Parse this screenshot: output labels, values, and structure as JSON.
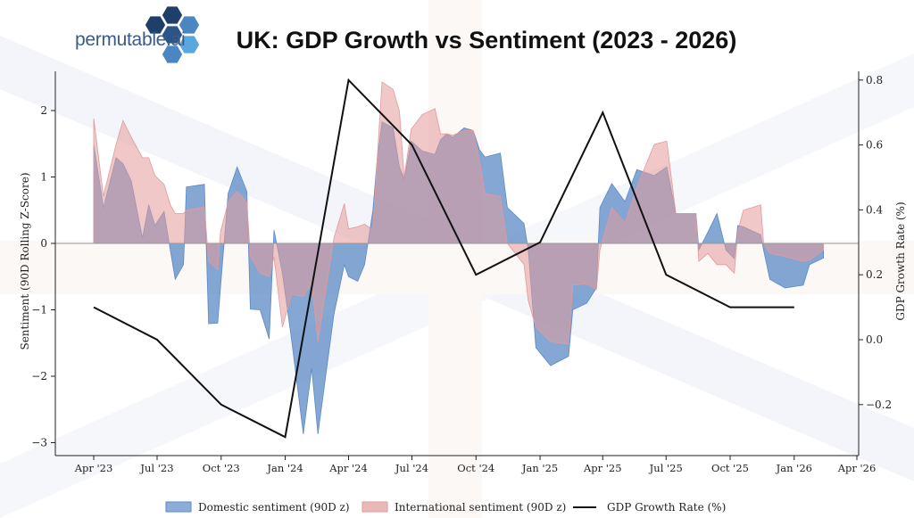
{
  "logo": {
    "text": "permutable.ai",
    "colors": [
      "#1f3f6b",
      "#2b5589",
      "#4a86c2",
      "#5aa7e0"
    ]
  },
  "chart_data": {
    "type": "area",
    "title": "UK: GDP Growth vs Sentiment (2023 - 2026)",
    "ylabel_left": "Sentiment (90D Rolling Z-Score)",
    "ylabel_right": "GDP Growth Rate (%)",
    "ylim_left": [
      -3.2,
      2.6
    ],
    "ylim_right": [
      -0.33,
      0.83
    ],
    "xlim": [
      "2023-03-02",
      "2026-04-01"
    ],
    "yticks_left": [
      2,
      1,
      0,
      -1,
      -2,
      -3
    ],
    "yticks_left_labels": [
      "2",
      "1",
      "0",
      "−1",
      "−2",
      "−3"
    ],
    "yticks_right": [
      0.8,
      0.6,
      0.4,
      0.2,
      0.0,
      -0.2
    ],
    "yticks_right_labels": [
      "0.8",
      "0.6",
      "0.4",
      "0.2",
      "0.0",
      "−0.2"
    ],
    "xticks": [
      "2023-04-01",
      "2023-07-01",
      "2023-10-01",
      "2024-01-01",
      "2024-04-01",
      "2024-07-01",
      "2024-10-01",
      "2025-01-01",
      "2025-04-01",
      "2025-07-01",
      "2025-10-01",
      "2026-01-01",
      "2026-04-01"
    ],
    "xtick_labels": [
      "Apr '23",
      "Jul '23",
      "Oct '23",
      "Jan '24",
      "Apr '24",
      "Jul '24",
      "Oct '24",
      "Jan '25",
      "Apr '25",
      "Jul '25",
      "Oct '25",
      "Jan '26",
      "Apr '26"
    ],
    "grid": false,
    "legend_position": "bottom-center",
    "series": [
      {
        "name": "Domestic sentiment (90D z)",
        "kind": "area",
        "axis": "left",
        "color": "#5b8ac6"
      },
      {
        "name": "International sentiment (90D z)",
        "kind": "area",
        "axis": "left",
        "color": "#e39a9a"
      },
      {
        "name": "GDP Growth Rate (%)",
        "kind": "line",
        "axis": "right",
        "color": "#111111"
      }
    ],
    "sentiment_dates": [
      "2023-04-01",
      "2023-04-15",
      "2023-05-03",
      "2023-05-13",
      "2023-05-25",
      "2023-06-10",
      "2023-06-19",
      "2023-06-28",
      "2023-07-11",
      "2023-07-20",
      "2023-07-27",
      "2023-08-08",
      "2023-08-12",
      "2023-09-07",
      "2023-09-13",
      "2023-09-26",
      "2023-09-30",
      "2023-10-11",
      "2023-10-24",
      "2023-11-07",
      "2023-11-12",
      "2023-11-26",
      "2023-12-09",
      "2023-12-16",
      "2023-12-28",
      "2024-01-10",
      "2024-01-27",
      "2024-02-08",
      "2024-02-17",
      "2024-03-11",
      "2024-03-26",
      "2024-04-01",
      "2024-04-14",
      "2024-04-24",
      "2024-05-06",
      "2024-05-12",
      "2024-05-19",
      "2024-06-04",
      "2024-06-13",
      "2024-06-20",
      "2024-06-30",
      "2024-07-16",
      "2024-08-03",
      "2024-08-11",
      "2024-08-20",
      "2024-08-29",
      "2024-09-14",
      "2024-09-27",
      "2024-10-06",
      "2024-10-14",
      "2024-11-05",
      "2024-11-15",
      "2024-12-09",
      "2024-12-15",
      "2024-12-26",
      "2025-01-16",
      "2025-02-11",
      "2025-02-17",
      "2025-03-09",
      "2025-03-23",
      "2025-03-28",
      "2025-04-14",
      "2025-05-03",
      "2025-05-20",
      "2025-06-14",
      "2025-07-02",
      "2025-07-15",
      "2025-08-13",
      "2025-08-17",
      "2025-08-30",
      "2025-09-12",
      "2025-09-25",
      "2025-10-07",
      "2025-10-12",
      "2025-10-20",
      "2025-11-14",
      "2025-11-18",
      "2025-11-27",
      "2025-12-19",
      "2026-01-14",
      "2026-01-23",
      "2026-02-12"
    ],
    "domestic": [
      1.49,
      0.54,
      1.29,
      1.2,
      0.94,
      0.08,
      0.58,
      0.27,
      0.48,
      -0.1,
      -0.54,
      -0.32,
      0.85,
      0.89,
      -1.21,
      -1.2,
      -0.67,
      0.75,
      1.15,
      0.78,
      -0.99,
      -1.0,
      -1.44,
      0.2,
      -0.45,
      -1.44,
      -2.87,
      -1.88,
      -2.87,
      -1.07,
      -0.32,
      -0.5,
      -0.57,
      -0.32,
      0.5,
      1.25,
      1.83,
      1.74,
      1.15,
      0.97,
      1.54,
      1.39,
      1.34,
      1.56,
      1.65,
      1.6,
      1.74,
      1.7,
      1.41,
      1.3,
      1.36,
      0.54,
      0.3,
      -0.1,
      -1.57,
      -1.84,
      -1.7,
      -1.0,
      -0.9,
      -0.67,
      0.54,
      0.9,
      0.63,
      1.11,
      1.02,
      1.15,
      0.45,
      0.45,
      -0.1,
      0.17,
      0.45,
      -0.1,
      -0.23,
      0.27,
      0.25,
      0.13,
      -0.1,
      -0.54,
      -0.67,
      -0.63,
      -0.32,
      -0.22
    ],
    "international": [
      1.88,
      0.71,
      1.49,
      1.85,
      1.6,
      1.29,
      1.29,
      1.02,
      0.89,
      0.58,
      0.45,
      0.45,
      0.5,
      0.55,
      -0.27,
      -0.4,
      0.17,
      0.62,
      0.78,
      0.62,
      -0.19,
      -0.45,
      -0.5,
      -0.2,
      -1.26,
      -0.77,
      -0.8,
      -0.6,
      -1.48,
      0.08,
      0.6,
      0.22,
      0.25,
      0.29,
      0.2,
      1.25,
      2.43,
      2.32,
      1.99,
      1.0,
      1.72,
      1.94,
      2.03,
      1.65,
      1.65,
      1.63,
      1.7,
      1.7,
      1.25,
      0.75,
      0.71,
      0.0,
      -0.32,
      -0.86,
      -1.26,
      -1.48,
      -1.52,
      -0.63,
      -0.61,
      -0.7,
      -0.1,
      0.54,
      0.31,
      0.85,
      1.49,
      1.54,
      0.45,
      0.45,
      -0.27,
      -0.15,
      -0.32,
      -0.32,
      -0.45,
      0.18,
      0.5,
      0.58,
      0.0,
      -0.15,
      -0.2,
      -0.27,
      -0.25,
      -0.1
    ],
    "gdp_dates": [
      "2023-04-01",
      "2023-07-01",
      "2023-10-01",
      "2024-01-01",
      "2024-04-01",
      "2024-07-01",
      "2024-10-01",
      "2025-01-01",
      "2025-04-01",
      "2025-07-01",
      "2025-10-01",
      "2026-01-01"
    ],
    "gdp": [
      0.1,
      0.0,
      -0.2,
      -0.3,
      0.8,
      0.6,
      0.2,
      0.3,
      0.7,
      0.2,
      0.1,
      0.1
    ]
  }
}
